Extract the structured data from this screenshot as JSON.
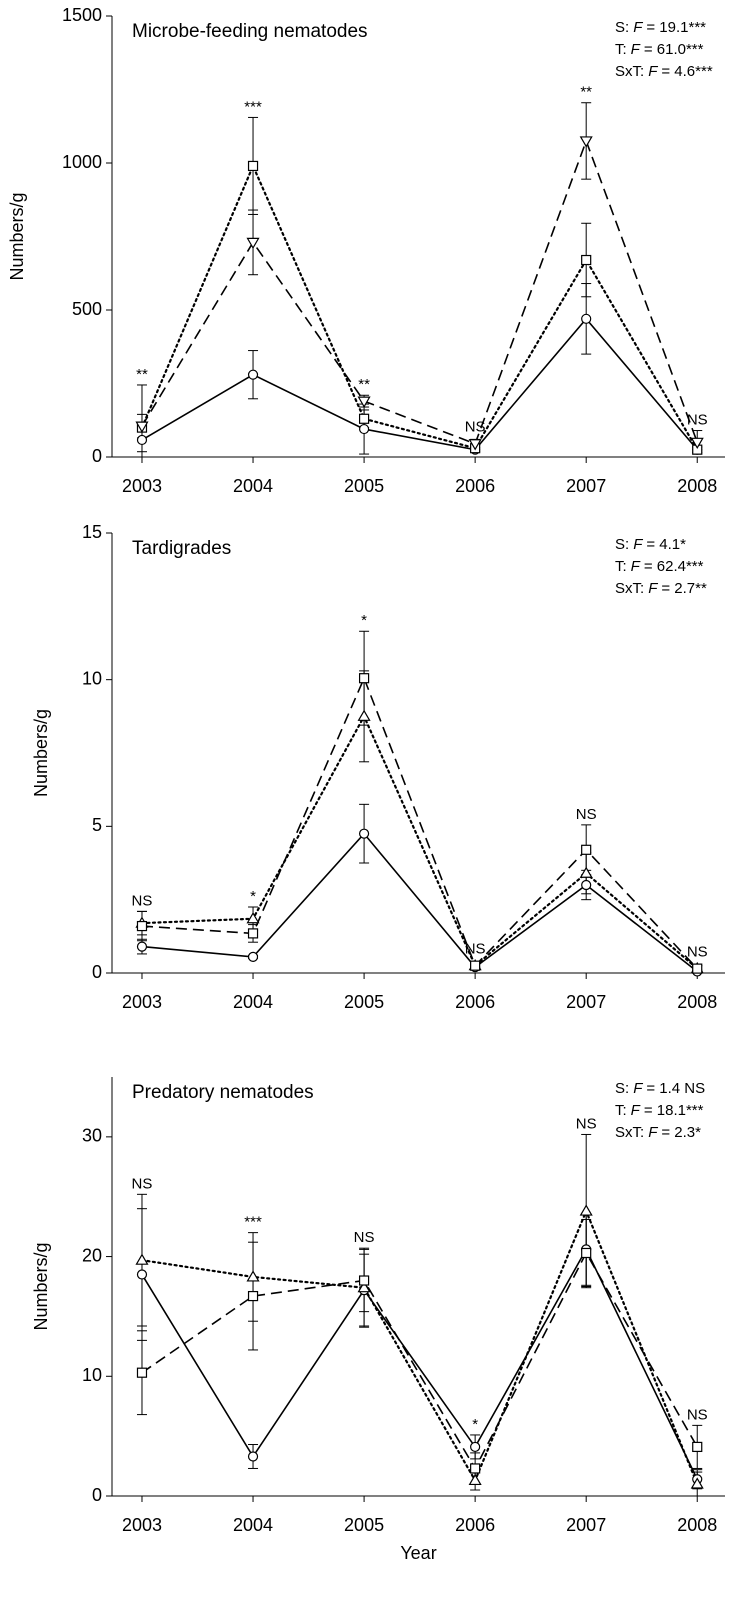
{
  "chart_data": [
    {
      "type": "line",
      "title": "Microbe-feeding nematodes",
      "y_label": "Numbers/g",
      "x": [
        2003,
        2004,
        2005,
        2006,
        2007,
        2008
      ],
      "xlim": [
        2002.73,
        2008.25
      ],
      "xticks": [
        2003,
        2004,
        2005,
        2006,
        2007,
        2008
      ],
      "ylim": [
        0,
        1500
      ],
      "yticks": [
        0,
        500,
        1000,
        1500
      ],
      "significance": [
        "**",
        "***",
        "**",
        "NS",
        "**",
        "NS"
      ],
      "stats": [
        {
          "label": "S:",
          "stat": "F",
          "text": "= 19.1***"
        },
        {
          "label": "T:",
          "stat": "F",
          "text": "= 61.0***"
        },
        {
          "label": "SxT:",
          "stat": "F",
          "text": "= 4.6***"
        }
      ],
      "series": [
        {
          "marker": "circle",
          "dash": "solid",
          "color": "#000000",
          "values": [
            58,
            280,
            95,
            25,
            470,
            25
          ],
          "errors": [
            40,
            82,
            85,
            8,
            120,
            8
          ]
        },
        {
          "marker": "square",
          "dash": "dotted",
          "color": "#000000",
          "values": [
            100,
            990,
            130,
            30,
            670,
            25
          ],
          "errors": [
            145,
            165,
            30,
            10,
            125,
            10
          ]
        },
        {
          "marker": "triangle-down",
          "dash": "dashed",
          "color": "#000000",
          "values": [
            105,
            730,
            190,
            45,
            1075,
            50
          ],
          "errors": [
            40,
            110,
            20,
            15,
            130,
            40
          ]
        }
      ]
    },
    {
      "type": "line",
      "title": "Tardigrades",
      "y_label": "Numbers/g",
      "x": [
        2003,
        2004,
        2005,
        2006,
        2007,
        2008
      ],
      "xlim": [
        2002.73,
        2008.25
      ],
      "xticks": [
        2003,
        2004,
        2005,
        2006,
        2007,
        2008
      ],
      "ylim": [
        0,
        15
      ],
      "yticks": [
        0,
        5,
        10,
        15
      ],
      "significance": [
        "NS",
        "*",
        "*",
        "NS",
        "NS",
        "NS"
      ],
      "stats": [
        {
          "label": "S:",
          "stat": "F",
          "text": "= 4.1*"
        },
        {
          "label": "T:",
          "stat": "F",
          "text": "= 62.4***"
        },
        {
          "label": "SxT:",
          "stat": "F",
          "text": "= 2.7**"
        }
      ],
      "series": [
        {
          "marker": "circle",
          "dash": "solid",
          "color": "#000000",
          "values": [
            0.9,
            0.55,
            4.75,
            0.2,
            3.0,
            0.05
          ],
          "errors": [
            0.25,
            0.05,
            1.0,
            0.1,
            0.5,
            0.05
          ]
        },
        {
          "marker": "triangle-up",
          "dash": "dotted",
          "color": "#000000",
          "values": [
            1.7,
            1.85,
            8.75,
            0.25,
            3.4,
            0.15
          ],
          "errors": [
            0.4,
            0.4,
            1.55,
            0.1,
            0.7,
            0.1
          ]
        },
        {
          "marker": "square",
          "dash": "dashed",
          "color": "#000000",
          "values": [
            1.6,
            1.35,
            10.05,
            0.25,
            4.2,
            0.15
          ],
          "errors": [
            0.5,
            0.3,
            1.6,
            0.1,
            0.85,
            0.1
          ]
        }
      ]
    },
    {
      "type": "line",
      "title": "Predatory nematodes",
      "y_label": "Numbers/g",
      "x_label": "Year",
      "x": [
        2003,
        2004,
        2005,
        2006,
        2007,
        2008
      ],
      "xlim": [
        2002.73,
        2008.25
      ],
      "xticks": [
        2003,
        2004,
        2005,
        2006,
        2007,
        2008
      ],
      "ylim": [
        0,
        35
      ],
      "yticks": [
        0,
        10,
        20,
        30
      ],
      "significance": [
        "NS",
        "***",
        "NS",
        "*",
        "NS",
        "NS"
      ],
      "stats": [
        {
          "label": "S:",
          "stat": "F",
          "text": "= 1.4 NS"
        },
        {
          "label": "T:",
          "stat": "F",
          "text": "= 18.1***"
        },
        {
          "label": "SxT:",
          "stat": "F",
          "text": "= 2.3*"
        }
      ],
      "series": [
        {
          "marker": "circle",
          "dash": "solid",
          "color": "#000000",
          "values": [
            18.5,
            3.3,
            17.2,
            4.1,
            20.6,
            1.4
          ],
          "errors": [
            5.5,
            1.0,
            3.0,
            1.0,
            3.0,
            0.8
          ]
        },
        {
          "marker": "triangle-up",
          "dash": "dotted",
          "color": "#000000",
          "values": [
            19.7,
            18.3,
            17.4,
            1.3,
            23.8,
            1.0
          ],
          "errors": [
            5.5,
            3.7,
            3.3,
            0.8,
            6.4,
            1.0
          ]
        },
        {
          "marker": "square",
          "dash": "dashed",
          "color": "#000000",
          "values": [
            10.3,
            16.7,
            18.0,
            2.3,
            20.3,
            4.1
          ],
          "errors": [
            3.5,
            4.5,
            2.6,
            1.3,
            2.8,
            1.8
          ]
        }
      ]
    }
  ]
}
